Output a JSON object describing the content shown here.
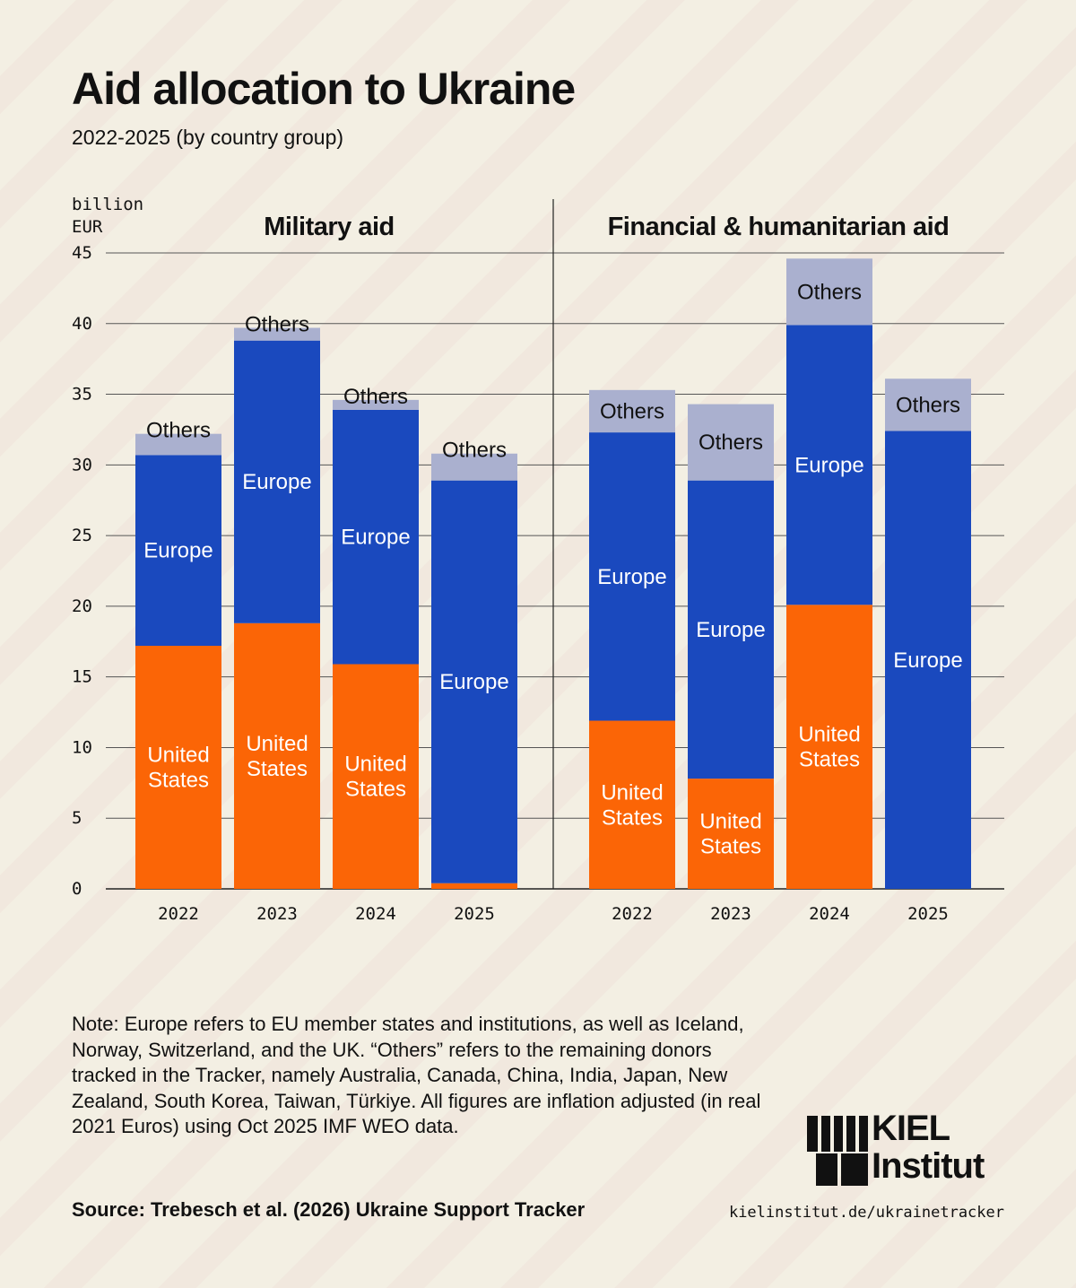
{
  "title": "Aid allocation to Ukraine",
  "subtitle": "2022-2025 (by country group)",
  "colors": {
    "united_states": "#fb6506",
    "europe": "#1a49be",
    "others": "#aab0cf",
    "background": "#f3efe3",
    "text": "#111111"
  },
  "chart_data": {
    "type": "bar",
    "stacked": true,
    "ylabel": "billion\nEUR",
    "ylim": [
      0,
      45
    ],
    "yticks": [
      0,
      5,
      10,
      15,
      20,
      25,
      30,
      35,
      40,
      45
    ],
    "grid": true,
    "panels": [
      {
        "title": "Military aid",
        "categories": [
          "2022",
          "2023",
          "2024",
          "2025"
        ],
        "series": [
          {
            "name": "United States",
            "label": "United States",
            "values": [
              17.2,
              18.8,
              15.9,
              0.4
            ]
          },
          {
            "name": "Europe",
            "label": "Europe",
            "values": [
              13.5,
              20.0,
              18.0,
              28.5
            ]
          },
          {
            "name": "Others",
            "label": "Others",
            "values": [
              1.5,
              0.9,
              0.7,
              1.9
            ]
          }
        ]
      },
      {
        "title": "Financial & humanitarian aid",
        "categories": [
          "2022",
          "2023",
          "2024",
          "2025"
        ],
        "series": [
          {
            "name": "United States",
            "label": "United States",
            "values": [
              11.9,
              7.8,
              20.1,
              0
            ]
          },
          {
            "name": "Europe",
            "label": "Europe",
            "values": [
              20.4,
              21.1,
              19.8,
              32.4
            ]
          },
          {
            "name": "Others",
            "label": "Others",
            "values": [
              3.0,
              5.4,
              4.7,
              3.7
            ]
          }
        ]
      }
    ]
  },
  "note": "Note: Europe refers to EU member states and institutions, as well as Iceland, Norway, Switzerland, and the UK. “Others” refers to the remaining donors tracked in the Tracker, namely Australia, Canada, China, India, Japan, New Zealand, South Korea, Taiwan, Türkiye. All figures are inflation adjusted (in real 2021 Euros) using Oct 2025 IMF WEO data.",
  "source": "Source: Trebesch et al. (2026) Ukraine Support Tracker",
  "url": "kielinstitut.de/ukrainetracker",
  "logo": {
    "line1": "KIEL",
    "line2": "Institut"
  }
}
